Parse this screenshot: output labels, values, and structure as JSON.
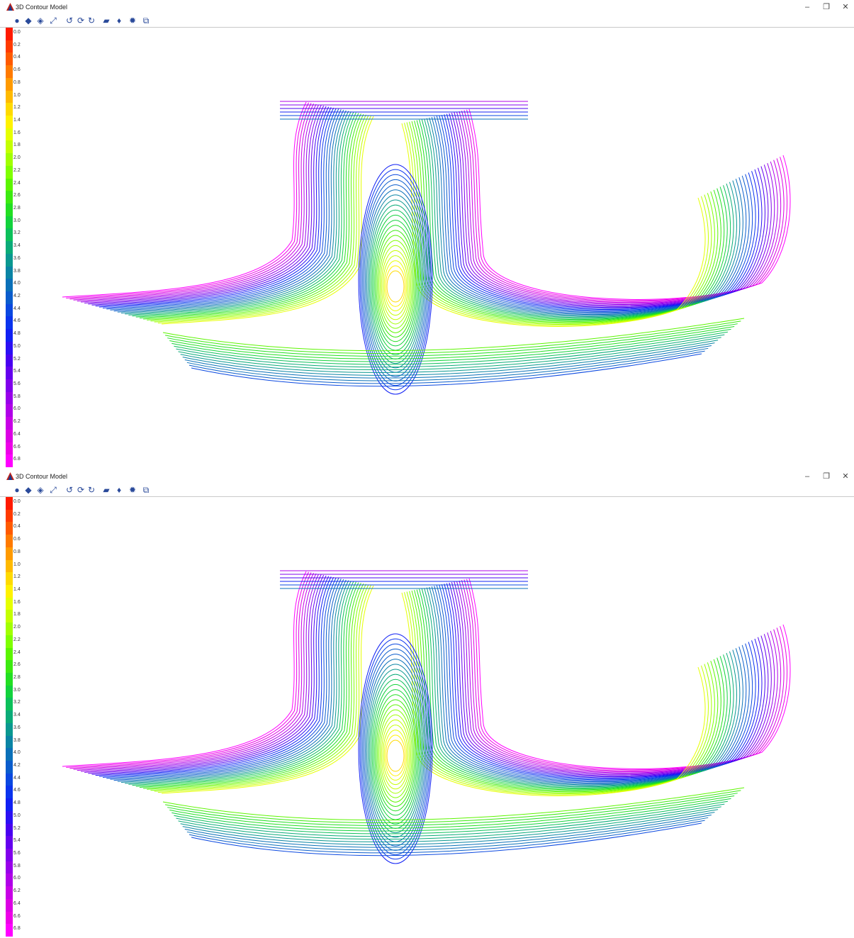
{
  "windows": [
    {
      "title": "3D Contour Model",
      "controls": {
        "minimize": "–",
        "restore": "❐",
        "close": "✕"
      },
      "toolbar": [
        {
          "icon": "sphere-icon",
          "glyph": "●"
        },
        {
          "icon": "shaded-icon",
          "glyph": "◆"
        },
        {
          "icon": "layers-icon",
          "glyph": "◈"
        },
        {
          "icon": "fit-extents-icon",
          "glyph": "⤢"
        },
        {
          "icon": "rotate-x-icon",
          "glyph": "↺"
        },
        {
          "icon": "rotate-y-icon",
          "glyph": "⟳"
        },
        {
          "icon": "rotate-z-icon",
          "glyph": "↻"
        },
        {
          "icon": "surface-icon",
          "glyph": "▰"
        },
        {
          "icon": "marker-icon",
          "glyph": "♦"
        },
        {
          "icon": "light-icon",
          "glyph": "✹"
        },
        {
          "icon": "window-icon",
          "glyph": "⧉"
        }
      ]
    },
    {
      "title": "3D Contour Model",
      "controls": {
        "minimize": "–",
        "restore": "❐",
        "close": "✕"
      },
      "toolbar": [
        {
          "icon": "sphere-icon",
          "glyph": "●"
        },
        {
          "icon": "shaded-icon",
          "glyph": "◆"
        },
        {
          "icon": "layers-icon",
          "glyph": "◈"
        },
        {
          "icon": "fit-extents-icon",
          "glyph": "⤢"
        },
        {
          "icon": "rotate-x-icon",
          "glyph": "↺"
        },
        {
          "icon": "rotate-y-icon",
          "glyph": "⟳"
        },
        {
          "icon": "rotate-z-icon",
          "glyph": "↻"
        },
        {
          "icon": "surface-icon",
          "glyph": "▰"
        },
        {
          "icon": "marker-icon",
          "glyph": "♦"
        },
        {
          "icon": "light-icon",
          "glyph": "✹"
        },
        {
          "icon": "window-icon",
          "glyph": "⧉"
        }
      ]
    }
  ],
  "legend": {
    "labels": [
      "0.0",
      "0.2",
      "0.4",
      "0.6",
      "0.8",
      "1.0",
      "1.2",
      "1.4",
      "1.6",
      "1.8",
      "2.0",
      "2.2",
      "2.4",
      "2.6",
      "2.8",
      "3.0",
      "3.2",
      "3.4",
      "3.6",
      "3.8",
      "4.0",
      "4.2",
      "4.4",
      "4.6",
      "4.8",
      "5.0",
      "5.2",
      "5.4",
      "5.6",
      "5.8",
      "6.0",
      "6.2",
      "6.4",
      "6.6",
      "6.8"
    ],
    "colors": [
      "#ff1a00",
      "#ff3a00",
      "#ff5a00",
      "#ff7a00",
      "#ff9a00",
      "#ffba00",
      "#ffda00",
      "#fff200",
      "#e6ff00",
      "#c4ff00",
      "#a2ff00",
      "#7fff00",
      "#5cf500",
      "#3cea10",
      "#22df22",
      "#12d23c",
      "#0cc05a",
      "#0aab78",
      "#0a9890",
      "#0a84a4",
      "#0a70b8",
      "#0a5ccc",
      "#0a48e0",
      "#0a34ee",
      "#1020f4",
      "#2a10f4",
      "#4800f0",
      "#6400ee",
      "#8000ec",
      "#9800ea",
      "#b000e8",
      "#c800e6",
      "#dc00e4",
      "#ee00e8",
      "#ff00ff"
    ]
  }
}
